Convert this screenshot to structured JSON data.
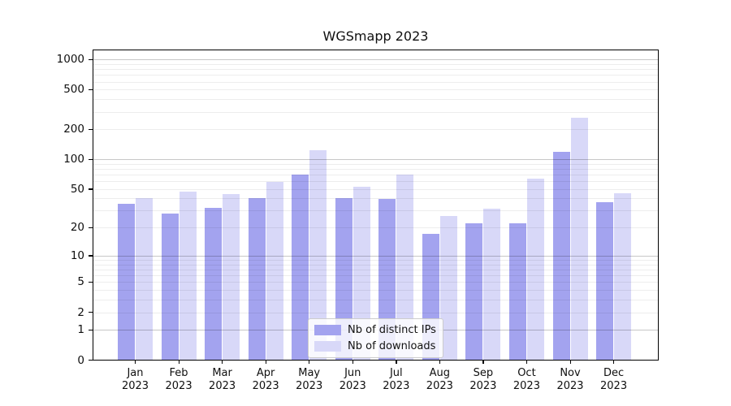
{
  "title": "WGSmapp 2023",
  "chart_data": {
    "type": "bar",
    "title": "WGSmapp 2023",
    "categories": [
      "Jan",
      "Feb",
      "Mar",
      "Apr",
      "May",
      "Jun",
      "Jul",
      "Aug",
      "Sep",
      "Oct",
      "Nov",
      "Dec"
    ],
    "x_year": "2023",
    "series": [
      {
        "name": "Nb of distinct IPs",
        "color": "#a3a3ef",
        "values": [
          35,
          28,
          32,
          40,
          70,
          40,
          39,
          17,
          22,
          22,
          118,
          36
        ]
      },
      {
        "name": "Nb of downloads",
        "color": "#d8d8f8",
        "values": [
          40,
          47,
          44,
          58,
          122,
          52,
          70,
          26,
          31,
          63,
          258,
          45
        ]
      }
    ],
    "y_axis": {
      "scale": "log1p",
      "tick_values": [
        0,
        1,
        2,
        5,
        10,
        20,
        50,
        100,
        200,
        500,
        1000
      ],
      "tick_labels": [
        "0",
        "1",
        "2",
        "5",
        "10",
        "20",
        "50",
        "100",
        "200",
        "500",
        "1000"
      ],
      "max_tick": 1000
    },
    "legend": {
      "position": "lower center"
    },
    "grid": {
      "horizontal": true,
      "major_at_powers_of_10": true,
      "minor_log_subdivisions": true
    }
  }
}
